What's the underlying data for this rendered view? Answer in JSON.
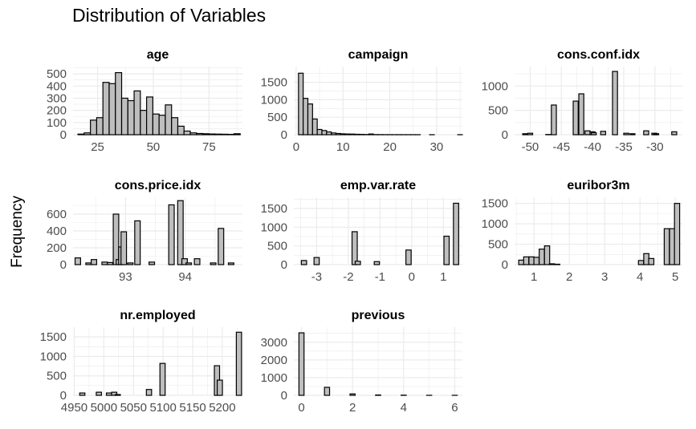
{
  "title": "Distribution of Variables",
  "ylabel": "Frequency",
  "colors": {
    "bar_fill": "#bebebe",
    "bar_stroke": "#000000",
    "grid": "#ebebeb",
    "text": "#4d4d4d"
  },
  "chart_data": [
    {
      "type": "bar",
      "title": "age",
      "xlim": [
        14,
        90
      ],
      "ylim": [
        0,
        560
      ],
      "xticks": [
        25,
        50,
        75
      ],
      "yticks": [
        0,
        100,
        200,
        300,
        400,
        500
      ],
      "bin_width": 2.8,
      "x": [
        17.6,
        20.4,
        23.2,
        26.0,
        28.8,
        31.6,
        34.4,
        37.2,
        40.0,
        42.8,
        45.6,
        48.4,
        51.2,
        54.0,
        56.8,
        59.6,
        62.4,
        65.2,
        68.0,
        70.8,
        73.6,
        76.4,
        79.2,
        82.0,
        84.8,
        87.6
      ],
      "values": [
        5,
        15,
        120,
        140,
        430,
        420,
        510,
        300,
        280,
        360,
        200,
        310,
        170,
        160,
        245,
        140,
        70,
        30,
        15,
        10,
        8,
        6,
        5,
        4,
        3,
        8
      ]
    },
    {
      "type": "bar",
      "title": "campaign",
      "xlim": [
        -0.5,
        35.5
      ],
      "ylim": [
        0,
        1950
      ],
      "xticks": [
        0,
        10,
        20,
        30
      ],
      "yticks": [
        0,
        500,
        1000,
        1500
      ],
      "bin_width": 1,
      "x": [
        1,
        2,
        3,
        4,
        5,
        6,
        7,
        8,
        9,
        10,
        11,
        12,
        13,
        14,
        15,
        16,
        17,
        18,
        19,
        20,
        21,
        22,
        23,
        24,
        25,
        26,
        27,
        28,
        29,
        30,
        31,
        32,
        33,
        34,
        35
      ],
      "values": [
        1760,
        1040,
        880,
        450,
        150,
        120,
        80,
        50,
        35,
        25,
        20,
        18,
        12,
        10,
        6,
        20,
        4,
        3,
        2,
        2,
        1,
        2,
        1,
        1,
        1,
        1,
        0,
        0,
        1,
        0,
        0,
        0,
        0,
        0,
        1
      ]
    },
    {
      "type": "bar",
      "title": "cons.conf.idx",
      "xlim": [
        -52.5,
        -25.6
      ],
      "ylim": [
        0,
        1400
      ],
      "xticks": [
        -50,
        -45,
        -40,
        -35,
        -30
      ],
      "yticks": [
        0,
        500,
        1000
      ],
      "bin_width": 0.8,
      "x": [
        -50.8,
        -50.0,
        -47.1,
        -46.2,
        -42.7,
        -41.8,
        -40.8,
        -40.0,
        -39.8,
        -38.3,
        -36.4,
        -34.6,
        -33.6,
        -31.4,
        -30.1,
        -29.8,
        -26.9
      ],
      "values": [
        20,
        30,
        5,
        610,
        690,
        840,
        80,
        60,
        40,
        70,
        1300,
        30,
        20,
        80,
        30,
        20,
        60
      ]
    },
    {
      "type": "bar",
      "title": "cons.price.idx",
      "xlim": [
        92.12,
        94.96
      ],
      "ylim": [
        0,
        800
      ],
      "xticks": [
        93,
        94
      ],
      "yticks": [
        0,
        200,
        400,
        600
      ],
      "bin_width": 0.092,
      "x": [
        92.2,
        92.38,
        92.47,
        92.65,
        92.74,
        92.84,
        92.89,
        92.93,
        92.97,
        93.08,
        93.2,
        93.44,
        93.77,
        93.92,
        93.99,
        94.06,
        94.2,
        94.47,
        94.6,
        94.77
      ],
      "values": [
        80,
        20,
        60,
        30,
        25,
        600,
        60,
        210,
        390,
        20,
        520,
        30,
        710,
        760,
        70,
        20,
        70,
        20,
        430,
        20
      ]
    },
    {
      "type": "bar",
      "title": "emp.var.rate",
      "xlim": [
        -3.72,
        1.6
      ],
      "ylim": [
        0,
        1800
      ],
      "xticks": [
        -3,
        -2,
        -1,
        0,
        1
      ],
      "yticks": [
        0,
        500,
        1000,
        1500
      ],
      "bin_width": 0.165,
      "x": [
        -3.4,
        -3.0,
        -1.8,
        -1.7,
        -1.1,
        -0.1,
        1.1,
        1.4
      ],
      "values": [
        110,
        190,
        880,
        90,
        80,
        390,
        760,
        1640
      ]
    },
    {
      "type": "bar",
      "title": "euribor3m",
      "xlim": [
        0.45,
        5.2
      ],
      "ylim": [
        0,
        1650
      ],
      "xticks": [
        1,
        2,
        3,
        4,
        5
      ],
      "yticks": [
        0,
        500,
        1000,
        1500
      ],
      "bin_width": 0.146,
      "x": [
        0.64,
        0.78,
        0.93,
        1.07,
        1.22,
        1.37,
        1.51,
        1.66,
        4.03,
        4.18,
        4.32,
        4.76,
        4.91,
        5.05
      ],
      "values": [
        110,
        190,
        190,
        180,
        380,
        460,
        20,
        10,
        100,
        270,
        150,
        880,
        880,
        1500
      ]
    },
    {
      "type": "bar",
      "title": "nr.employed",
      "xlim": [
        4948,
        5234
      ],
      "ylim": [
        0,
        1750
      ],
      "xticks": [
        4950,
        5000,
        5050,
        5100,
        5150,
        5200
      ],
      "yticks": [
        0,
        500,
        1000,
        1500
      ],
      "bin_width": 8.8,
      "x": [
        4963.6,
        4991.6,
        5008.7,
        5017.5,
        5023.5,
        5076.2,
        5099.1,
        5191.0,
        5195.8,
        5228.1
      ],
      "values": [
        60,
        80,
        60,
        80,
        20,
        150,
        820,
        760,
        390,
        1620
      ]
    },
    {
      "type": "bar",
      "title": "previous",
      "xlim": [
        -0.3,
        6.3
      ],
      "ylim": [
        0,
        3850
      ],
      "xticks": [
        0,
        2,
        4,
        6
      ],
      "yticks": [
        0,
        1000,
        2000,
        3000
      ],
      "bin_width": 0.2,
      "x": [
        0,
        1,
        2,
        3,
        4,
        5,
        6
      ],
      "values": [
        3530,
        450,
        80,
        20,
        10,
        2,
        1
      ]
    }
  ]
}
